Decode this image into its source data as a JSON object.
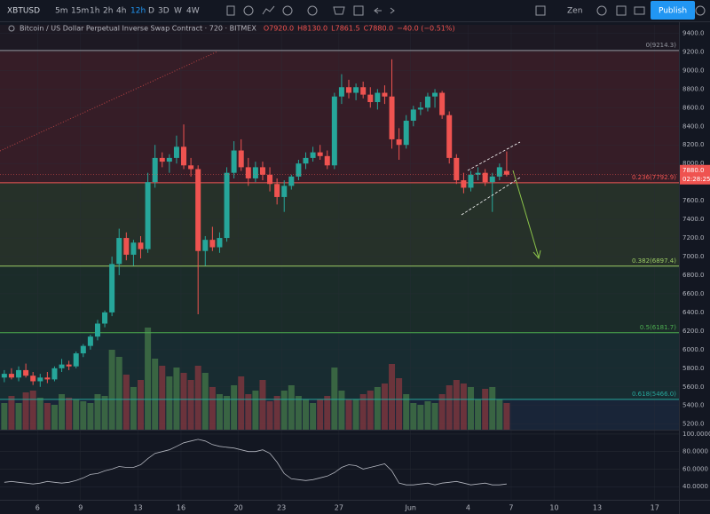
{
  "toolbar": {
    "symbol": "XBTUSD",
    "intervals": [
      "5m",
      "15m",
      "1h",
      "2h",
      "4h",
      "12h",
      "D",
      "3D",
      "W",
      "4W"
    ],
    "zen": "Zen",
    "publish": "Publish"
  },
  "legend": {
    "title": "Bitcoin / US Dollar Perpetual Inverse Swap Contract · 720 · BITMEX",
    "open": "O7920.0",
    "high": "H8130.0",
    "low": "L7861.5",
    "close": "C7880.0",
    "change": "−40.0 (−0.51%)"
  },
  "chart_data": {
    "type": "candlestick",
    "up_color": "#26a69a",
    "down_color": "#ef5350",
    "open": [
      5700,
      5740,
      5700,
      5780,
      5720,
      5660,
      5700,
      5680,
      5800,
      5840,
      5820,
      5960,
      6040,
      6140,
      6280,
      6400,
      6920,
      7200,
      7020,
      7150,
      7080,
      7800,
      8060,
      8020,
      8060,
      8180,
      7980,
      7940,
      7060,
      7180,
      7100,
      7200,
      7900,
      8140,
      7960,
      7840,
      7960,
      7880,
      7780,
      7640,
      7760,
      7860,
      8000,
      8060,
      8120,
      8080,
      7980,
      8720,
      8820,
      8760,
      8820,
      8740,
      8660,
      8760,
      8720,
      8260,
      8200,
      8460,
      8580,
      8600,
      8720,
      8760,
      8520,
      8060,
      7820,
      7740,
      7880,
      7900,
      7800,
      7860,
      7920
    ],
    "high": [
      5780,
      5800,
      5820,
      5850,
      5760,
      5740,
      5760,
      5820,
      5900,
      5880,
      5980,
      6060,
      6160,
      6320,
      6420,
      7000,
      7300,
      7260,
      7180,
      7220,
      7900,
      8200,
      8120,
      8100,
      8300,
      8420,
      8060,
      7980,
      7220,
      7320,
      7260,
      7960,
      8240,
      8260,
      8060,
      8020,
      8020,
      7960,
      7840,
      7820,
      7880,
      8040,
      8120,
      8180,
      8200,
      8140,
      8760,
      8960,
      8900,
      8860,
      8880,
      8820,
      8800,
      8840,
      9120,
      8380,
      8520,
      8620,
      8660,
      8760,
      8800,
      8780,
      8560,
      8100,
      7900,
      7920,
      7960,
      7940,
      7900,
      8000,
      8130
    ],
    "low": [
      5650,
      5680,
      5660,
      5700,
      5620,
      5600,
      5640,
      5660,
      5760,
      5780,
      5800,
      5920,
      6000,
      6100,
      6240,
      6360,
      6800,
      6960,
      6900,
      6980,
      7040,
      7740,
      7960,
      7900,
      8000,
      7940,
      7860,
      6380,
      6900,
      7060,
      7040,
      7160,
      7840,
      7920,
      7760,
      7800,
      7820,
      7700,
      7560,
      7480,
      7720,
      7820,
      7940,
      8020,
      8040,
      7940,
      7940,
      8640,
      8700,
      8680,
      8700,
      8600,
      8580,
      8640,
      8160,
      8040,
      8160,
      8400,
      8520,
      8560,
      8600,
      8480,
      8000,
      7780,
      7680,
      7700,
      7820,
      7760,
      7480,
      7820,
      7861.5
    ],
    "close": [
      5740,
      5700,
      5780,
      5720,
      5660,
      5700,
      5680,
      5800,
      5840,
      5820,
      5960,
      6040,
      6140,
      6280,
      6400,
      6920,
      7200,
      7020,
      7150,
      7080,
      7800,
      8060,
      8020,
      8060,
      8180,
      7980,
      7940,
      7060,
      7180,
      7100,
      7200,
      7900,
      8140,
      7960,
      7840,
      7960,
      7880,
      7780,
      7640,
      7760,
      7860,
      8000,
      8060,
      8120,
      8080,
      7980,
      8720,
      8820,
      8760,
      8820,
      8740,
      8660,
      8760,
      8720,
      8260,
      8200,
      8460,
      8580,
      8600,
      8720,
      8760,
      8520,
      8060,
      7820,
      7740,
      7880,
      7900,
      7800,
      7860,
      7960,
      7880
    ],
    "volume": [
      30,
      38,
      30,
      42,
      44,
      36,
      30,
      28,
      40,
      36,
      34,
      32,
      30,
      40,
      38,
      90,
      82,
      62,
      48,
      56,
      115,
      80,
      72,
      60,
      70,
      64,
      56,
      72,
      64,
      48,
      40,
      38,
      50,
      60,
      40,
      44,
      56,
      32,
      38,
      44,
      50,
      38,
      34,
      30,
      34,
      38,
      70,
      44,
      34,
      34,
      40,
      44,
      48,
      52,
      74,
      58,
      40,
      30,
      28,
      32,
      30,
      40,
      50,
      56,
      52,
      48,
      34,
      46,
      48,
      34,
      30
    ],
    "xlim": [
      -0.6,
      94
    ],
    "xticks": [
      {
        "value": 4.625,
        "label": "6"
      },
      {
        "value": 10.625,
        "label": "9"
      },
      {
        "value": 18.625,
        "label": "13"
      },
      {
        "value": 24.625,
        "label": "16"
      },
      {
        "value": 32.625,
        "label": "20"
      },
      {
        "value": 38.625,
        "label": "23"
      },
      {
        "value": 46.625,
        "label": "27"
      },
      {
        "value": 56.625,
        "label": "Jun"
      },
      {
        "value": 64.625,
        "label": "4"
      },
      {
        "value": 70.625,
        "label": "7"
      },
      {
        "value": 76.625,
        "label": "10"
      },
      {
        "value": 82.625,
        "label": "13"
      },
      {
        "value": 90.625,
        "label": "17"
      }
    ],
    "ylim": [
      5140,
      9490
    ],
    "yticks": [
      {
        "value": 5200,
        "label": "5200.0"
      },
      {
        "value": 5400,
        "label": "5400.0"
      },
      {
        "value": 5600,
        "label": "5600.0"
      },
      {
        "value": 5800,
        "label": "5800.0"
      },
      {
        "value": 6000,
        "label": "6000.0"
      },
      {
        "value": 6200,
        "label": "6200.0"
      },
      {
        "value": 6400,
        "label": "6400.0"
      },
      {
        "value": 6600,
        "label": "6600.0"
      },
      {
        "value": 6800,
        "label": "6800.0"
      },
      {
        "value": 7000,
        "label": "7000.0"
      },
      {
        "value": 7200,
        "label": "7200.0"
      },
      {
        "value": 7400,
        "label": "7400.0"
      },
      {
        "value": 7600,
        "label": "7600.0"
      },
      {
        "value": 7800,
        "label": "7800.0"
      },
      {
        "value": 8000,
        "label": "8000.0"
      },
      {
        "value": 8200,
        "label": "8200.0"
      },
      {
        "value": 8400,
        "label": "8400.0"
      },
      {
        "value": 8600,
        "label": "8600.0"
      },
      {
        "value": 8800,
        "label": "8800.0"
      },
      {
        "value": 9000,
        "label": "9000.0"
      },
      {
        "value": 9200,
        "label": "9200.0"
      },
      {
        "value": 9400,
        "label": "9400.0"
      }
    ],
    "grid": true,
    "fib_levels": [
      {
        "value": 9214.3,
        "label": "0(9214.3)",
        "color": "#9598a1",
        "band": "rgba(120,40,50,0.35)"
      },
      {
        "value": 7792.9,
        "label": "0.236(7792.9)",
        "color": "#ef5350",
        "band": "rgba(90,120,60,0.28)"
      },
      {
        "value": 6897.4,
        "label": "0.382(6897.4)",
        "color": "#9ccc65",
        "band": "rgba(50,100,60,0.28)"
      },
      {
        "value": 6181.7,
        "label": "0.5(6181.7)",
        "color": "#4caf50",
        "band": "rgba(40,100,90,0.28)"
      },
      {
        "value": 5466.0,
        "label": "0.618(5466.0)",
        "color": "#26a69a",
        "band": "rgba(40,70,110,0.3)"
      }
    ],
    "last_price": {
      "value": 7880,
      "label": "7880.0"
    },
    "countdown": "02:28:25",
    "oscillator": {
      "values": [
        45,
        46,
        45,
        44,
        43,
        44,
        46,
        45,
        44,
        45,
        47,
        50,
        54,
        55,
        58,
        60,
        63,
        62,
        62,
        65,
        72,
        78,
        80,
        82,
        86,
        90,
        92,
        94,
        92,
        88,
        86,
        85,
        84,
        82,
        80,
        80,
        82,
        78,
        68,
        55,
        49,
        48,
        47,
        48,
        50,
        52,
        56,
        62,
        65,
        64,
        60,
        62,
        64,
        66,
        58,
        44,
        42,
        42,
        43,
        44,
        42,
        44,
        45,
        46,
        44,
        42,
        43,
        44,
        42,
        42,
        43
      ],
      "color": "#b2b5be",
      "ylim": [
        25,
        104
      ],
      "yticks": [
        {
          "value": 40,
          "label": "40.0000"
        },
        {
          "value": 60,
          "label": "60.0000"
        },
        {
          "value": 80,
          "label": "80.0000"
        },
        {
          "value": 100,
          "label": "100.0000"
        }
      ]
    }
  }
}
